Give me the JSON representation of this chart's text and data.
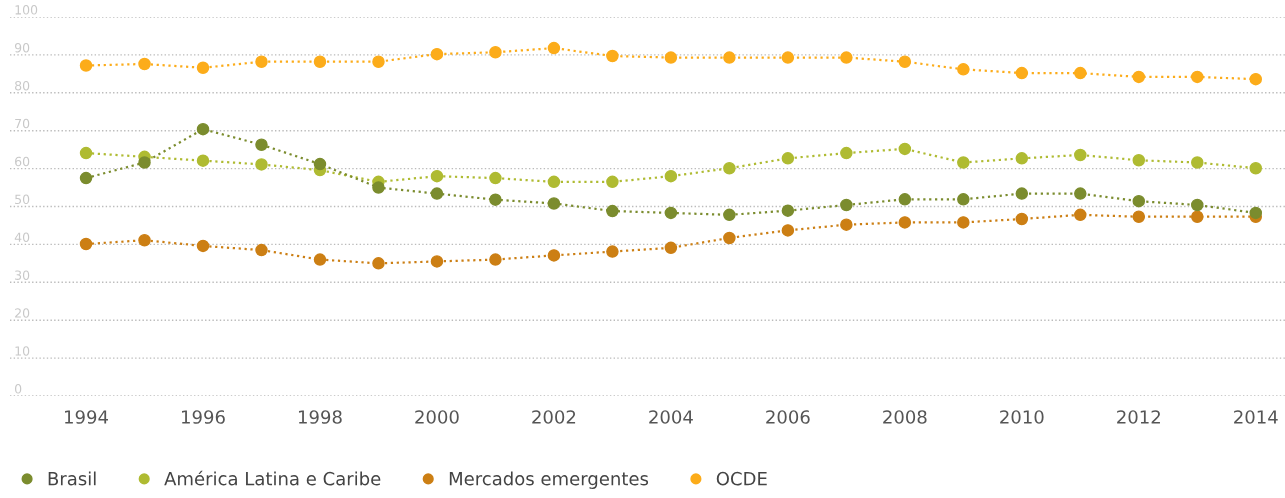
{
  "chart_data": {
    "type": "line",
    "x": [
      1994,
      1995,
      1996,
      1997,
      1998,
      1999,
      2000,
      2001,
      2002,
      2003,
      2004,
      2005,
      2006,
      2007,
      2008,
      2009,
      2010,
      2011,
      2012,
      2013,
      2014
    ],
    "series": [
      {
        "name": "Brasil",
        "color": "#7b8c2e",
        "values": [
          57.5,
          61.6,
          70.4,
          66.3,
          61.2,
          55.0,
          53.4,
          51.8,
          50.8,
          48.8,
          48.3,
          47.8,
          48.9,
          50.4,
          51.9,
          51.9,
          53.4,
          53.4,
          51.4,
          50.4,
          48.3
        ]
      },
      {
        "name": "América Latina e Caribe",
        "color": "#afbb32",
        "values": [
          64.1,
          63.1,
          62.1,
          61.1,
          59.6,
          56.5,
          58.0,
          57.5,
          56.5,
          56.5,
          58.0,
          60.1,
          62.7,
          64.1,
          65.2,
          61.6,
          62.7,
          63.6,
          62.2,
          61.6,
          60.1
        ]
      },
      {
        "name": "Mercados emergentes",
        "color": "#cc7f14",
        "values": [
          40.1,
          41.1,
          39.6,
          38.5,
          36.0,
          35.0,
          35.5,
          36.0,
          37.1,
          38.1,
          39.1,
          41.7,
          43.7,
          45.2,
          45.8,
          45.8,
          46.7,
          47.8,
          47.3,
          47.3,
          47.3
        ]
      },
      {
        "name": "OCDE",
        "color": "#fcac1a",
        "values": [
          87.2,
          87.6,
          86.6,
          88.2,
          88.2,
          88.2,
          90.2,
          90.7,
          91.8,
          89.7,
          89.3,
          89.3,
          89.3,
          89.3,
          88.2,
          86.2,
          85.2,
          85.2,
          84.2,
          84.2,
          83.6
        ]
      }
    ],
    "xlim": [
      1992.7,
      2014.5
    ],
    "xticks": [
      1994,
      1996,
      1998,
      2000,
      2002,
      2004,
      2006,
      2008,
      2010,
      2012,
      2014
    ],
    "ylim": [
      0,
      100
    ],
    "yticks": [
      0,
      10,
      20,
      30,
      40,
      50,
      60,
      70,
      80,
      90,
      100
    ],
    "grid": "y",
    "legend": "bottom left",
    "marker": "circle",
    "line_style": "dotted"
  }
}
